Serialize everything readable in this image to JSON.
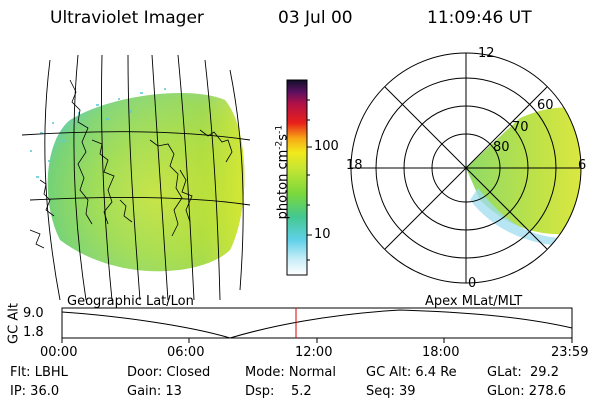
{
  "header": {
    "title": "Ultraviolet Imager",
    "date": "03 Jul 00",
    "time": "11:09:46 UT"
  },
  "colorbar": {
    "label": "photon cm",
    "exp1": "-2",
    "label_mid": "s",
    "exp2": "-1",
    "ticks": [
      "100",
      "10"
    ]
  },
  "polar": {
    "ring_labels": [
      "60",
      "70",
      "80"
    ],
    "clock_labels": {
      "top": "12",
      "left": "18",
      "right": "6",
      "bottom": "0"
    }
  },
  "panel_labels": {
    "left": "Geographic Lat/Lon",
    "right": "Apex MLat/MLT"
  },
  "altitude_plot": {
    "ylabel": "GC Alt",
    "yticks": [
      "9.0",
      "1.8"
    ],
    "xticks": [
      "00:00",
      "06:00",
      "12:00",
      "18:00",
      "23:59"
    ],
    "colors": {
      "current": "#e00000",
      "curve": "#000000"
    }
  },
  "status": {
    "row1": [
      "Flt: LBHL",
      "Door: Closed",
      "Mode: Normal",
      "GC Alt: 6.4 Re",
      "GLat:  29.2"
    ],
    "row2": [
      "IP: 36.0",
      "Gain: 13",
      "Dsp:    5.2",
      "Seq: 39",
      "GLon: 278.6"
    ]
  }
}
